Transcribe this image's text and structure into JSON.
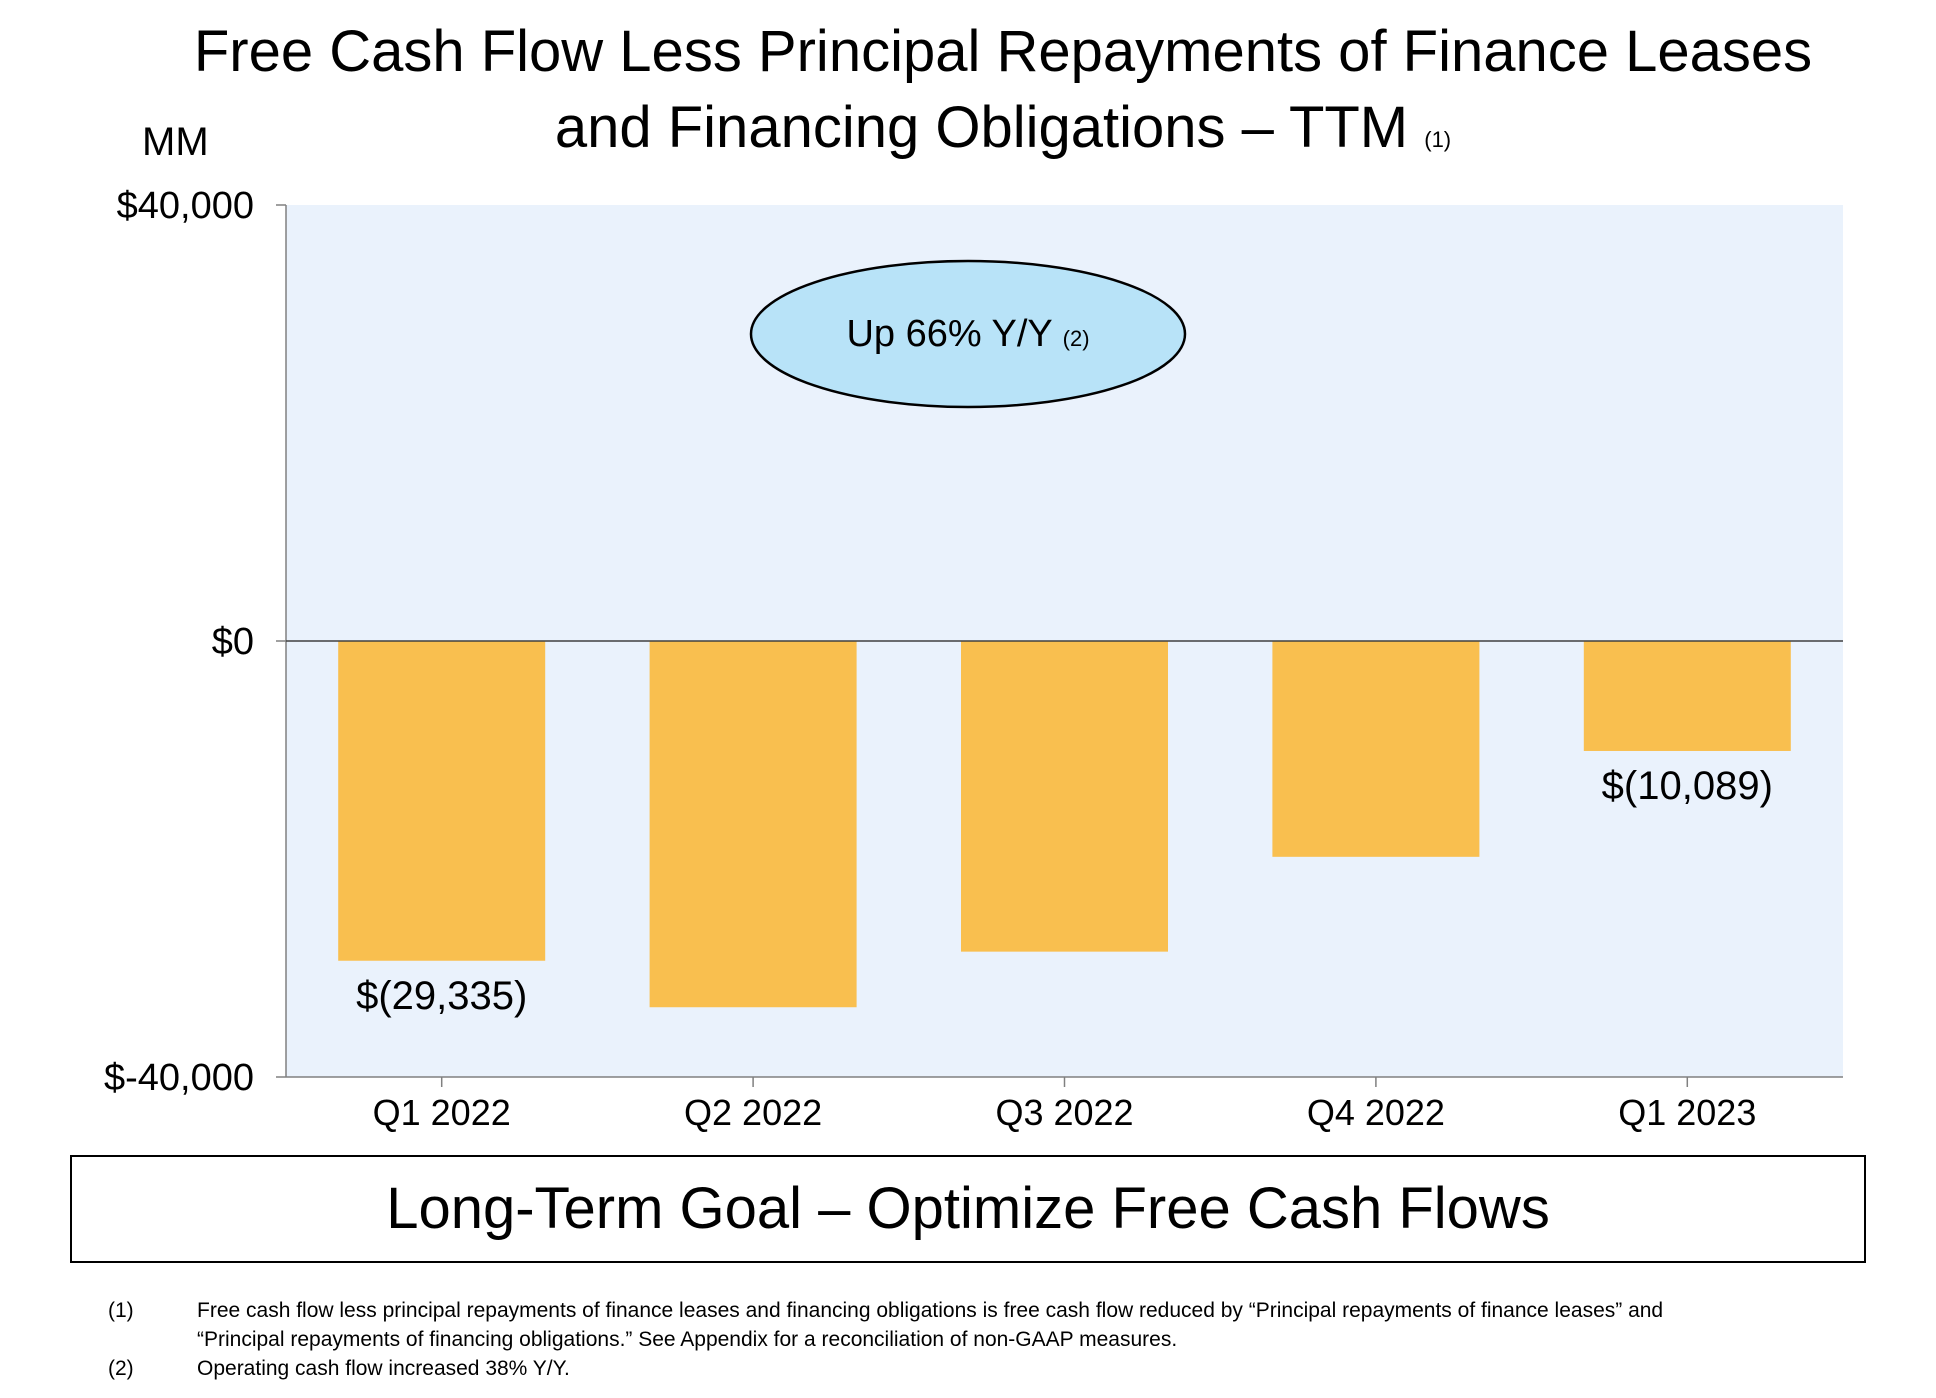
{
  "title": {
    "line1": "Free Cash Flow Less Principal Repayments of Finance Leases",
    "line2": "and Financing Obligations – TTM",
    "note_ref": "(1)"
  },
  "unit_label": "MM",
  "chart_data": {
    "type": "bar",
    "categories": [
      "Q1 2022",
      "Q2 2022",
      "Q3 2022",
      "Q4 2022",
      "Q1 2023"
    ],
    "values": [
      -29335,
      -33600,
      -28500,
      -19800,
      -10089
    ],
    "ylim": [
      -40000,
      40000
    ],
    "y_ticks": [
      40000,
      0,
      -40000
    ],
    "y_tick_labels": [
      "$40,000",
      "$0",
      "$-40,000"
    ],
    "data_labels": [
      {
        "index": 0,
        "text": "$(29,335)"
      },
      {
        "index": 4,
        "text": "$(10,089)"
      }
    ],
    "callout": {
      "text": "Up 66% Y/Y",
      "note_ref": "(2)"
    },
    "colors": {
      "bar": "#F9BF4F",
      "plot_bg": "#EAF2FC",
      "callout_fill": "#B8E3F8"
    }
  },
  "goal_banner": "Long-Term Goal – Optimize Free Cash Flows",
  "footnotes": [
    {
      "num": "(1)",
      "text": "Free cash flow less principal repayments of finance leases and financing obligations is free cash flow reduced by “Principal repayments of finance leases” and “Principal repayments of financing obligations.” See Appendix for a reconciliation of non-GAAP measures."
    },
    {
      "num": "(2)",
      "text": "Operating cash flow increased 38% Y/Y."
    }
  ]
}
